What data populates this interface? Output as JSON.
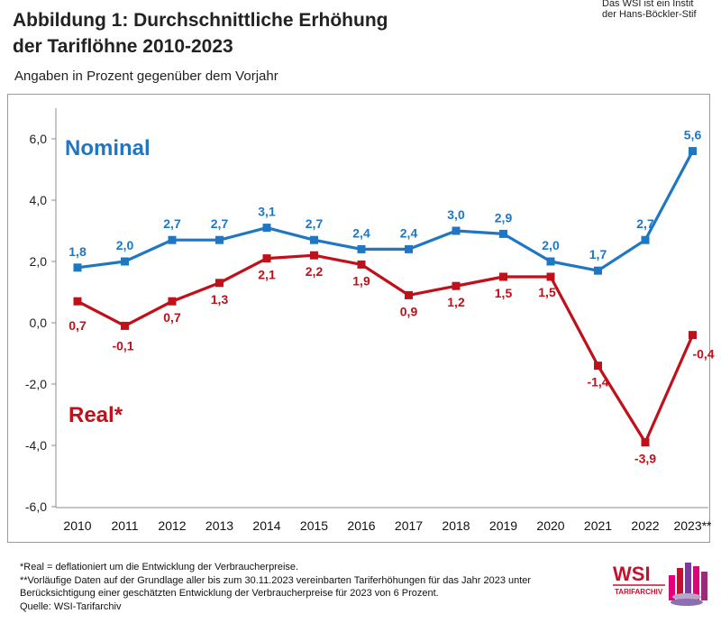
{
  "header": {
    "institute_line1": "Das WSI ist ein Instit",
    "institute_line2": "der Hans-Böckler-Stif",
    "title_line1": "Abbildung 1: Durchschnittliche Erhöhung",
    "title_line2": "der Tariflöhne 2010-2023",
    "subtitle": "Angaben in Prozent gegenüber dem Vorjahr"
  },
  "chart_data": {
    "type": "line",
    "categories": [
      "2010",
      "2011",
      "2012",
      "2013",
      "2014",
      "2015",
      "2016",
      "2017",
      "2018",
      "2019",
      "2020",
      "2021",
      "2022",
      "2023**"
    ],
    "series": [
      {
        "name": "Nominal",
        "color": "#1f77c4",
        "values": [
          1.8,
          2.0,
          2.7,
          2.7,
          3.1,
          2.7,
          2.4,
          2.4,
          3.0,
          2.9,
          2.0,
          1.7,
          2.7,
          5.6
        ],
        "labels": [
          "1,8",
          "2,0",
          "2,7",
          "2,7",
          "3,1",
          "2,7",
          "2,4",
          "2,4",
          "3,0",
          "2,9",
          "2,0",
          "1,7",
          "2,7",
          "5,6"
        ]
      },
      {
        "name": "Real*",
        "color": "#c0101a",
        "values": [
          0.7,
          -0.1,
          0.7,
          1.3,
          2.1,
          2.2,
          1.9,
          0.9,
          1.2,
          1.5,
          1.5,
          -1.4,
          -3.9,
          -0.4
        ],
        "labels": [
          "0,7",
          "-0,1",
          "0,7",
          "1,3",
          "2,1",
          "2,2",
          "1,9",
          "0,9",
          "1,2",
          "1,5",
          "1,5",
          "-1,4",
          "-3,9",
          "-0,4"
        ]
      }
    ],
    "ylim": [
      -6,
      7
    ],
    "yticks": [
      -6,
      -4,
      -2,
      0,
      2,
      4,
      6
    ],
    "ytick_labels": [
      "-6,0",
      "-4,0",
      "-2,0",
      "0,0",
      "2,0",
      "4,0",
      "6,0"
    ],
    "grid": false,
    "legend": "inline labels"
  },
  "footnotes": {
    "real": "*Real = deflationiert um die Entwicklung der Verbraucherpreise.",
    "prelim_line1": "**Vorläufige Daten auf der Grundlage aller bis zum 30.11.2023 vereinbarten Tariferhöhungen für das Jahr 2023 unter",
    "prelim_line2": "Berücksichtigung einer geschätzten Entwicklung der Verbraucherpreise für 2023 von 6 Prozent.",
    "source": "Quelle: WSI-Tarifarchiv"
  },
  "logo": {
    "text": "WSI",
    "subtext": "TARIFARCHIV"
  }
}
